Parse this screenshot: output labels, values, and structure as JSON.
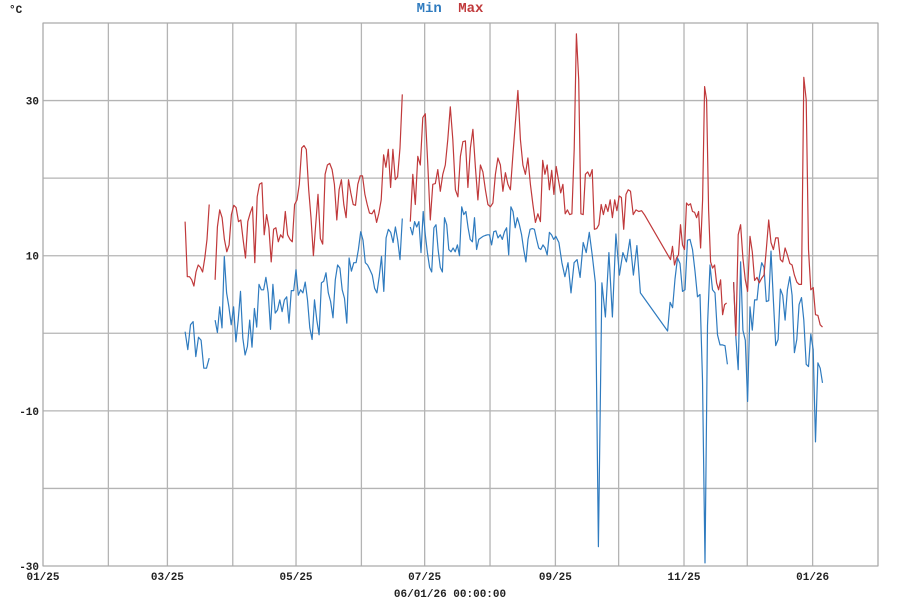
{
  "chart_data": {
    "type": "line",
    "title": "",
    "ylabel": "°C",
    "xlabel": "06/01/26 00:00:00",
    "x_unit": "days since 2025-01-01",
    "xlim": [
      0,
      396
    ],
    "ylim": [
      -30,
      40
    ],
    "grid": true,
    "legend_position": "top-center",
    "month_gridlines": [
      0,
      31,
      59,
      90,
      120,
      151,
      181,
      212,
      243,
      273,
      304,
      334,
      365,
      396
    ],
    "x_ticks": [
      {
        "day": 0,
        "label": "01/25"
      },
      {
        "day": 59,
        "label": "03/25"
      },
      {
        "day": 120,
        "label": "05/25"
      },
      {
        "day": 181,
        "label": "07/25"
      },
      {
        "day": 243,
        "label": "09/25"
      },
      {
        "day": 304,
        "label": "11/25"
      },
      {
        "day": 365,
        "label": "01/26"
      }
    ],
    "y_gridlines": [
      -30,
      -20,
      -10,
      0,
      10,
      20,
      30,
      40
    ],
    "y_ticks": [
      {
        "value": 30,
        "label": "30"
      },
      {
        "value": 10,
        "label": "10"
      },
      {
        "value": -10,
        "label": "-10"
      },
      {
        "value": -30,
        "label": "-30"
      }
    ],
    "series": [
      {
        "name": "Min",
        "color": "#2f7bbf",
        "polylines": [
          [
            {
              "from": 67.4,
              "to": 78.8,
              "values": [
                0.2,
                -2.1,
                1.1,
                1.5,
                -3,
                -0.5,
                -0.9,
                -4.5,
                -4.5,
                -3.2
              ]
            }
          ],
          [
            {
              "from": 81.6,
              "to": 170.4,
              "values": [
                1.7,
                0.1,
                3.4,
                0.7,
                9.9,
                5.2,
                3.4,
                1.1,
                3.4,
                -1.1,
                1.7,
                5.4,
                -0.6,
                -2.8,
                -1.7,
                1.7,
                -1.8,
                3.2,
                0.8,
                6.3,
                5.6,
                5.6,
                7.2,
                5.2,
                0.5,
                6.3,
                2.6,
                3.0,
                4.3,
                2.8,
                4.3,
                4.7,
                1.3,
                5.5,
                5.5,
                8.2,
                4.9,
                5.6,
                5.2,
                6.6,
                4.3,
                0.7,
                -0.8,
                4.3,
                1.7,
                -0.2,
                6.5,
                6.7,
                7.8,
                5.2,
                4.1,
                2,
                6.9,
                8.8,
                8.4,
                5.6,
                4.5,
                1.3,
                9.7,
                8,
                9.1,
                9.1,
                10.8,
                13.1,
                12,
                9.1,
                8.8,
                8.2,
                7.5,
                5.8,
                5.2,
                7.3,
                9.9,
                5.4,
                12.3,
                13.4,
                13,
                11.7,
                13.7,
                12,
                9.5,
                14.8
              ]
            }
          ],
          [
            {
              "from": 174.2,
              "to": 243.2,
              "values": [
                13.7,
                12.7,
                14.4,
                13.7,
                14.4,
                10.4,
                15.7,
                12.7,
                10.4,
                8.5,
                7.9,
                13.6,
                14,
                10.8,
                8.5,
                7.9,
                14.9,
                14,
                10.8,
                10.5,
                11,
                10.5,
                11.4,
                10,
                16.3,
                15.3,
                15.7,
                13.6,
                12.1,
                11.8,
                14.9,
                10.8,
                12.1,
                12.3,
                12.5,
                12.6,
                12.7,
                12.7,
                11.4,
                13.1,
                13.2,
                12.3,
                12.7,
                12.1,
                13.1,
                13.6,
                10.1,
                16.3,
                15.7,
                13.6,
                14.9,
                14,
                12.7,
                10.8,
                9.2,
                12.1,
                13.4,
                13.5,
                13.4,
                12.1,
                11,
                10.8,
                11.4,
                11,
                10.1,
                13,
                12.7,
                12.1,
                12.5
              ]
            },
            {
              "from": 243.2,
              "to": 263.4,
              "values": [
                12.5,
                11.7,
                9.1,
                7.3,
                9.1,
                5.2,
                9.1,
                9.5,
                7.2,
                11.7,
                10.4,
                13,
                10,
                6.5,
                -27.5
              ]
            },
            {
              "from": 263.4,
              "to": 283.3,
              "values": [
                -27.5,
                6.5,
                2.1,
                10.4,
                2.1,
                12.8,
                7.5,
                10.4,
                9.2,
                12.1,
                7.5,
                11.3,
                5.2
              ]
            },
            {
              "from": 283.3,
              "to": 296.2,
              "values": [
                5.2,
                0.3
              ]
            },
            {
              "from": 296.2,
              "to": 324.6,
              "values": [
                0.3,
                4,
                3.3,
                7,
                9.7,
                9,
                5.4,
                5.6,
                12,
                12.1,
                10.8,
                8,
                4.7,
                5,
                -6,
                -29.6,
                1,
                8.8,
                5.6,
                5.2,
                -0.2,
                -1.5,
                -1.5,
                -1.6,
                -4
              ]
            }
          ],
          [
            {
              "from": 327.5,
              "to": 369.7,
              "values": [
                6.6,
                -0.6,
                -4.7,
                9.2,
                0.4,
                -0.9,
                -8.8,
                3.4,
                0.4,
                4.3,
                4.3,
                7.2,
                9.1,
                8.5,
                4.1,
                4.2,
                10.6,
                4.2,
                -1.6,
                -0.8,
                5.7,
                4.9,
                1.7,
                5.6,
                7.3,
                4.9,
                -2.5,
                -0.8,
                3.7,
                4.6,
                1.7,
                -4,
                -4.3,
                -0.1,
                -2.1,
                -14,
                -3.8,
                -4.5,
                -6.4
              ]
            }
          ]
        ]
      },
      {
        "name": "Max",
        "color": "#c0393b",
        "polylines": [
          [
            {
              "from": 67.4,
              "to": 78.8,
              "values": [
                14.4,
                7.3,
                7.3,
                6.9,
                6.1,
                7.9,
                8.8,
                8.5,
                7.9,
                9.7,
                12.1,
                16.6
              ]
            }
          ],
          [
            {
              "from": 81.6,
              "to": 170.4,
              "values": [
                6.9,
                13.7,
                15.9,
                14.9,
                12.1,
                10.5,
                11.4,
                15.3,
                16.5,
                16.2,
                14.4,
                14.6,
                12.1,
                9.7,
                14.4,
                15.5,
                16.3,
                9.1,
                17.6,
                19.2,
                19.4,
                12.7,
                15.3,
                13.6,
                9.2,
                13.4,
                13.6,
                11.8,
                12.7,
                12.3,
                15.7,
                12.7,
                12.1,
                11.8,
                16.6,
                17.2,
                19.2,
                23.9,
                24.2,
                23.7,
                18.5,
                14.9,
                10,
                14,
                17.9,
                12.2,
                11.5,
                20.5,
                21.7,
                21.9,
                21.1,
                19.2,
                14.6,
                18.5,
                19.8,
                16.6,
                14.9,
                19.8,
                18.1,
                16.6,
                16.5,
                19.2,
                20.3,
                20.3,
                17.9,
                16.6,
                15.5,
                15.4,
                15.9,
                14.3,
                15.5,
                17.2,
                23,
                21.4,
                23.7,
                18.8,
                23.7,
                19.8,
                20.2,
                23.9,
                30.8
              ]
            }
          ],
          [
            {
              "from": 174.2,
              "to": 235.9,
              "values": [
                14.4,
                20.5,
                16.6,
                22.8,
                21.7,
                27.8,
                28.3,
                21.7,
                14.6,
                19.2,
                19.3,
                21.1,
                18.3,
                20.5,
                21.7,
                25,
                29.2,
                25,
                18.5,
                17.6,
                22.8,
                24.7,
                24.8,
                18.8,
                23.9,
                26.3,
                21.4,
                17.2,
                21.7,
                20.8,
                18.5,
                16.6,
                16.3,
                16.8,
                20.5,
                22.6,
                21.7,
                18.3,
                20.7,
                19.2,
                18.5,
                23,
                27.2,
                31.3,
                25,
                21.7,
                20.5,
                22.6,
                19.2,
                16.6,
                14.3,
                15.4,
                14.4
              ]
            },
            {
              "from": 235.9,
              "to": 278.6,
              "values": [
                14.4,
                22.3,
                20.5,
                21.7,
                18.5,
                21,
                17.9,
                21.5,
                19.8,
                18.1,
                19.2,
                15.4,
                15.9,
                15.3,
                15.4,
                23.7,
                38.6,
                32.7,
                15.4,
                15.3,
                20.5,
                20.8,
                20.2,
                21.1,
                13.4,
                13.5,
                14,
                16.6,
                15.3,
                16.6,
                15.7,
                17.2,
                14.9,
                17.2,
                15.8,
                17.7,
                17.5,
                13.4,
                17.9,
                18.5,
                18.3
              ]
            },
            {
              "from": 278.6,
              "to": 285.2,
              "values": [
                18.3,
                15.3,
                15.9,
                15.7,
                15.8,
                15.3
              ]
            },
            {
              "from": 285.2,
              "to": 297.6,
              "values": [
                15.3,
                9.5
              ]
            },
            {
              "from": 297.6,
              "to": 324.2,
              "values": [
                9.5,
                11.2,
                8.8,
                9.7,
                10.1,
                14,
                11.4,
                10.8,
                16.8,
                16.5,
                16.7,
                15.7,
                15.6,
                14.9,
                15.7,
                11,
                17.2,
                31.8,
                30.1,
                15.9,
                9.2,
                8.4,
                8.8,
                6.5,
                5.6,
                6.9,
                2.4,
                3.7,
                3.9
              ]
            }
          ],
          [
            {
              "from": 327.5,
              "to": 369.7,
              "values": [
                6.6,
                -0.3,
                12.7,
                14,
                9.7,
                6.9,
                5.4,
                12.5,
                10.5,
                6.8,
                7.2,
                6.5,
                7.1,
                7.5,
                10.8,
                14.6,
                11.7,
                10.8,
                12.3,
                12.3,
                9.5,
                9.2,
                11,
                10.1,
                9,
                8.8,
                7.5,
                6.6,
                6.3,
                6.3,
                33,
                30.1,
                10.8,
                5.6,
                5.9,
                2.4,
                2.3,
                1.1,
                0.8
              ]
            }
          ]
        ]
      }
    ]
  }
}
